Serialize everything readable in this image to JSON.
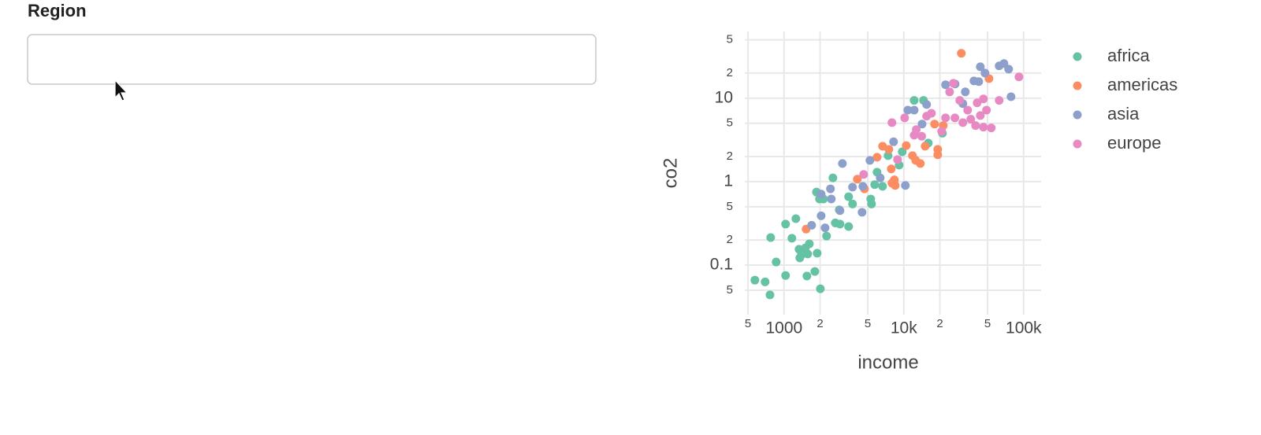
{
  "form": {
    "label": "Region"
  },
  "chart_data": {
    "type": "scatter",
    "xlabel": "income",
    "ylabel": "co2",
    "xscale": "log",
    "yscale": "log",
    "grid": true,
    "legend": "right",
    "xlim": [
      470,
      140000
    ],
    "ylim": [
      0.0255,
      63
    ],
    "xticks": [
      {
        "value": 500,
        "label": "5"
      },
      1000,
      {
        "value": 2000,
        "label": "2"
      },
      {
        "value": 5000,
        "label": "5"
      },
      {
        "value": 10000,
        "label": "10k"
      },
      {
        "value": 20000,
        "label": "2"
      },
      {
        "value": 50000,
        "label": "5"
      },
      {
        "value": 100000,
        "label": "100k"
      }
    ],
    "yticks": [
      {
        "value": 0.05,
        "label": "5"
      },
      0.1,
      {
        "value": 0.2,
        "label": "2"
      },
      {
        "value": 0.5,
        "label": "5"
      },
      1,
      {
        "value": 2,
        "label": "2"
      },
      {
        "value": 5,
        "label": "5"
      },
      10,
      {
        "value": 20,
        "label": "2"
      },
      {
        "value": 50,
        "label": "5"
      }
    ],
    "series": [
      {
        "name": "africa",
        "color": "#66c2a5",
        "x": [
          571,
          695,
          763,
          773,
          859,
          1030,
          1030,
          1163,
          1255,
          1334,
          1354,
          1397,
          1507,
          1575,
          1625,
          1552,
          1807,
          1864,
          1889,
          2009,
          1977,
          2133,
          2265,
          2557,
          2679,
          2889,
          2932,
          3459,
          3459,
          3733,
          5291,
          5372,
          5710,
          5977,
          6643,
          7387,
          9136,
          9700,
          12190,
          14600,
          16000,
          21000
        ],
        "values": [
          0.066,
          0.063,
          0.044,
          0.214,
          0.109,
          0.31,
          0.075,
          0.21,
          0.36,
          0.155,
          0.122,
          0.133,
          0.161,
          0.136,
          0.18,
          0.074,
          0.084,
          0.75,
          0.139,
          0.052,
          0.62,
          0.62,
          0.223,
          1.11,
          0.32,
          0.46,
          0.31,
          0.29,
          0.66,
          0.54,
          0.62,
          0.54,
          0.92,
          1.3,
          0.88,
          2.05,
          1.58,
          2.28,
          9.4,
          9.4,
          2.9,
          3.8
        ]
      },
      {
        "name": "americas",
        "color": "#fc8d62",
        "x": [
          1528,
          4090,
          4690,
          5977,
          6643,
          7500,
          7850,
          8340,
          7960,
          8470,
          10470,
          11800,
          12560,
          13740,
          15060,
          18060,
          19190,
          19190,
          21330,
          30200,
          51400
        ],
        "values": [
          0.27,
          1.07,
          0.82,
          1.96,
          2.66,
          2.44,
          1.42,
          1.05,
          0.96,
          0.9,
          2.7,
          2.05,
          1.8,
          1.65,
          2.66,
          4.9,
          2.1,
          2.44,
          4.7,
          34.5,
          17.2
        ]
      },
      {
        "name": "asia",
        "color": "#8da0cb",
        "x": [
          1700,
          2040,
          2040,
          2200,
          2440,
          2480,
          2930,
          3070,
          3730,
          4480,
          4550,
          5210,
          6350,
          8210,
          10300,
          10800,
          12200,
          14200,
          15500,
          22300,
          26800,
          31100,
          32600,
          38500,
          42200,
          43500,
          47600,
          62500,
          68500,
          75000,
          78500
        ],
        "values": [
          0.3,
          0.71,
          0.39,
          0.28,
          0.82,
          0.62,
          0.45,
          1.65,
          0.86,
          0.43,
          0.88,
          1.8,
          1.11,
          3.0,
          0.9,
          7.2,
          7.2,
          4.9,
          8.4,
          14.5,
          14.8,
          8.6,
          11.9,
          16.1,
          15.8,
          23.8,
          20,
          24.4,
          26,
          22.3,
          10.4
        ]
      },
      {
        "name": "europe",
        "color": "#e78ac3",
        "x": [
          4620,
          7960,
          8860,
          10160,
          12200,
          12700,
          14100,
          15500,
          17000,
          20700,
          22300,
          24100,
          25900,
          26700,
          29300,
          31100,
          34100,
          36200,
          39700,
          40900,
          43500,
          46200,
          46200,
          49000,
          53700,
          62500,
          91400
        ],
        "values": [
          1.22,
          5.1,
          1.84,
          5.8,
          3.6,
          4.2,
          3.5,
          6.1,
          6.6,
          4.0,
          5.8,
          11.9,
          15.1,
          5.8,
          9.4,
          5.1,
          7.2,
          5.6,
          4.7,
          8.8,
          6.2,
          9.8,
          4.5,
          7.2,
          4.4,
          9.4,
          18.0
        ]
      }
    ]
  }
}
